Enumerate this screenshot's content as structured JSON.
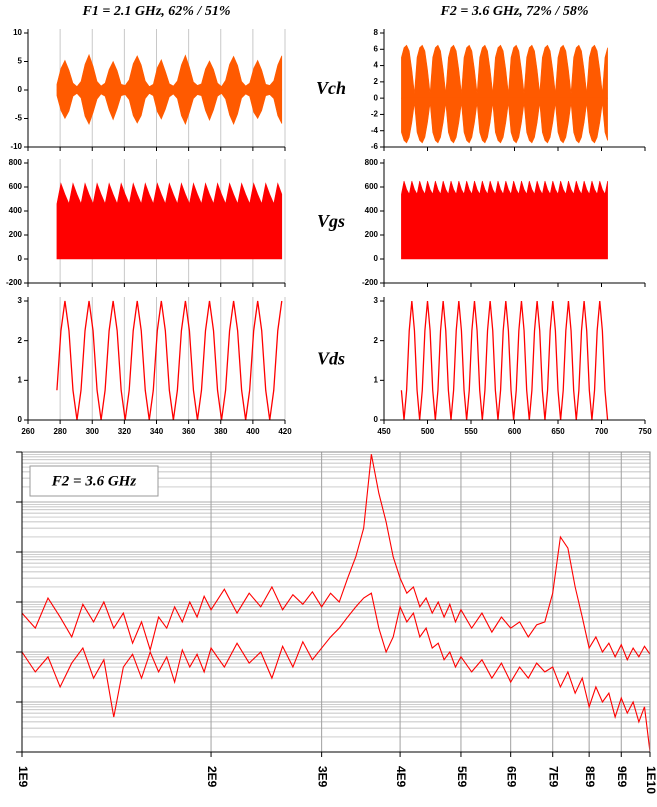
{
  "chart_data": [
    {
      "type": "waveform",
      "title": "F1 = 2.1 GHz, 62% / 51%",
      "xlim": [
        260,
        420
      ],
      "xticks": [
        260,
        280,
        300,
        320,
        340,
        360,
        380,
        400,
        420
      ],
      "grid": true,
      "x": [
        278,
        280.5,
        283,
        285.5,
        288,
        290.5,
        293,
        295.5,
        298,
        300.5,
        303,
        305.5,
        308,
        310.5,
        313,
        315.5,
        318,
        320.5,
        323,
        325.5,
        328,
        330.5,
        333,
        335.5,
        338,
        340.5,
        343,
        345.5,
        348,
        350.5,
        353,
        355.5,
        358,
        360.5,
        363,
        365.5,
        368,
        370.5,
        373,
        375.5,
        378,
        380.5,
        383,
        385.5,
        388,
        390.5,
        393,
        395.5,
        398,
        400.5,
        403,
        405.5,
        408,
        410.5,
        413,
        415.5,
        418
      ],
      "panels": [
        {
          "kind": "band",
          "color": "#ff5a00",
          "ylim": [
            -10,
            10
          ],
          "yticks": [
            -10,
            -5,
            0,
            5,
            10
          ],
          "values": [
            1.0,
            3.8,
            5.2,
            3.5,
            1.2,
            0.6,
            1.5,
            4.5,
            6.2,
            4.2,
            1.5,
            0.7,
            1.2,
            3.6,
            5.0,
            3.4,
            1.0,
            0.8,
            1.8,
            4.6,
            6.0,
            4.4,
            1.6,
            0.6,
            1.0,
            3.9,
            5.3,
            3.3,
            1.1,
            0.7,
            1.6,
            4.4,
            6.1,
            4.0,
            1.4,
            0.8,
            1.1,
            3.7,
            5.1,
            3.6,
            1.2,
            0.6,
            1.7,
            4.5,
            5.9,
            4.3,
            1.5,
            0.7,
            1.2,
            3.8,
            5.2,
            3.5,
            1.0,
            0.8,
            1.6,
            4.4,
            6.0
          ],
          "lower": [
            -1.0,
            -3.6,
            -5.0,
            -3.7,
            -1.1,
            -0.6,
            -1.4,
            -4.6,
            -6.0,
            -4.0,
            -1.6,
            -0.7,
            -1.1,
            -3.5,
            -5.2,
            -3.3,
            -1.0,
            -0.8,
            -1.7,
            -4.5,
            -5.8,
            -4.5,
            -1.5,
            -0.6,
            -1.0,
            -3.8,
            -5.1,
            -3.4,
            -1.2,
            -0.7,
            -1.5,
            -4.5,
            -6.0,
            -3.9,
            -1.5,
            -0.8,
            -1.0,
            -3.6,
            -5.3,
            -3.5,
            -1.1,
            -0.6,
            -1.6,
            -4.4,
            -6.0,
            -4.2,
            -1.4,
            -0.7,
            -1.1,
            -3.9,
            -5.0,
            -3.6,
            -1.0,
            -0.8,
            -1.5,
            -4.5,
            -5.9
          ]
        },
        {
          "kind": "area",
          "color": "#ff0000",
          "ylim": [
            -200,
            800
          ],
          "yticks": [
            -200,
            0,
            200,
            400,
            600,
            800
          ],
          "values": [
            460,
            630,
            540,
            460,
            630,
            540,
            460,
            630,
            540,
            460,
            630,
            540,
            460,
            630,
            540,
            460,
            630,
            540,
            460,
            630,
            540,
            460,
            630,
            540,
            460,
            630,
            540,
            460,
            630,
            540,
            460,
            630,
            540,
            460,
            630,
            540,
            460,
            630,
            540,
            460,
            630,
            540,
            460,
            630,
            540,
            460,
            630,
            540,
            460,
            630,
            540,
            460,
            630,
            540,
            460,
            630,
            540
          ]
        },
        {
          "kind": "line",
          "color": "#ff0000",
          "ylim": [
            0,
            3
          ],
          "yticks": [
            0,
            1,
            2,
            3
          ],
          "values": [
            0.75,
            2.25,
            3,
            2.25,
            0.75,
            0,
            0.75,
            2.25,
            3,
            2.25,
            0.75,
            0,
            0.75,
            2.25,
            3,
            2.25,
            0.75,
            0,
            0.75,
            2.25,
            3,
            2.25,
            0.75,
            0,
            0.75,
            2.25,
            3,
            2.25,
            0.75,
            0,
            0.75,
            2.25,
            3,
            2.25,
            0.75,
            0,
            0.75,
            2.25,
            3,
            2.25,
            0.75,
            0,
            0.75,
            2.25,
            3,
            2.25,
            0.75,
            0,
            0.75,
            2.25,
            3,
            2.25,
            0.75,
            0,
            0.75,
            2.25,
            3
          ]
        }
      ]
    },
    {
      "type": "waveform",
      "title": "F2 = 3.6 GHz, 72% / 58%",
      "xlim": [
        450,
        750
      ],
      "xticks": [
        450,
        500,
        550,
        600,
        650,
        700,
        750
      ],
      "grid": false,
      "x": [
        470,
        473,
        476,
        479,
        482,
        485,
        488,
        491,
        494,
        497,
        500,
        503,
        506,
        509,
        512,
        515,
        518,
        521,
        524,
        527,
        530,
        533,
        536,
        539,
        542,
        545,
        548,
        551,
        554,
        557,
        560,
        563,
        566,
        569,
        572,
        575,
        578,
        581,
        584,
        587,
        590,
        593,
        596,
        599,
        602,
        605,
        608,
        611,
        614,
        617,
        620,
        623,
        626,
        629,
        632,
        635,
        638,
        641,
        644,
        647,
        650,
        653,
        656,
        659,
        662,
        665,
        668,
        671,
        674,
        677,
        680,
        683,
        686,
        689,
        692,
        695,
        698,
        701,
        704,
        707
      ],
      "panels": [
        {
          "label": "Vch",
          "kind": "band",
          "color": "#ff5a00",
          "ylim": [
            -6,
            8
          ],
          "yticks": [
            -6,
            -4,
            -2,
            0,
            2,
            4,
            6,
            8
          ],
          "values": [
            5.0,
            6.2,
            6.5,
            5.8,
            3.5,
            0.6,
            5.0,
            6.2,
            6.5,
            5.8,
            3.5,
            0.6,
            5.0,
            6.2,
            6.5,
            5.8,
            3.5,
            0.6,
            5.0,
            6.2,
            6.5,
            5.8,
            3.5,
            0.6,
            5.0,
            6.2,
            6.5,
            5.8,
            3.5,
            0.6,
            5.0,
            6.2,
            6.5,
            5.8,
            3.5,
            0.6,
            5.0,
            6.2,
            6.5,
            5.8,
            3.5,
            0.6,
            5.0,
            6.2,
            6.5,
            5.8,
            3.5,
            0.6,
            5.0,
            6.2,
            6.5,
            5.8,
            3.5,
            0.6,
            5.0,
            6.2,
            6.5,
            5.8,
            3.5,
            0.6,
            5.0,
            6.2,
            6.5,
            5.8,
            3.5,
            0.6,
            5.0,
            6.2,
            6.5,
            5.8,
            3.5,
            0.6,
            5.0,
            6.2,
            6.5,
            5.8,
            3.5,
            0.6,
            5.0,
            6.2
          ],
          "lower": [
            -4.2,
            -5.2,
            -5.5,
            -4.8,
            -3.0,
            -0.6,
            -4.2,
            -5.2,
            -5.5,
            -4.8,
            -3.0,
            -0.6,
            -4.2,
            -5.2,
            -5.5,
            -4.8,
            -3.0,
            -0.6,
            -4.2,
            -5.2,
            -5.5,
            -4.8,
            -3.0,
            -0.6,
            -4.2,
            -5.2,
            -5.5,
            -4.8,
            -3.0,
            -0.6,
            -4.2,
            -5.2,
            -5.5,
            -4.8,
            -3.0,
            -0.6,
            -4.2,
            -5.2,
            -5.5,
            -4.8,
            -3.0,
            -0.6,
            -4.2,
            -5.2,
            -5.5,
            -4.8,
            -3.0,
            -0.6,
            -4.2,
            -5.2,
            -5.5,
            -4.8,
            -3.0,
            -0.6,
            -4.2,
            -5.2,
            -5.5,
            -4.8,
            -3.0,
            -0.6,
            -4.2,
            -5.2,
            -5.5,
            -4.8,
            -3.0,
            -0.6,
            -4.2,
            -5.2,
            -5.5,
            -4.8,
            -3.0,
            -0.6,
            -4.2,
            -5.2,
            -5.5,
            -4.8,
            -3.0,
            -0.6,
            -4.2,
            -5.2
          ]
        },
        {
          "label": "Vgs",
          "kind": "area",
          "color": "#ff0000",
          "ylim": [
            -200,
            800
          ],
          "yticks": [
            -200,
            0,
            200,
            400,
            600,
            800
          ],
          "values": [
            540,
            650,
            580,
            540,
            650,
            580,
            540,
            650,
            580,
            540,
            650,
            580,
            540,
            650,
            580,
            540,
            650,
            580,
            540,
            650,
            580,
            540,
            650,
            580,
            540,
            650,
            580,
            540,
            650,
            580,
            540,
            650,
            580,
            540,
            650,
            580,
            540,
            650,
            580,
            540,
            650,
            580,
            540,
            650,
            580,
            540,
            650,
            580,
            540,
            650,
            580,
            540,
            650,
            580,
            540,
            650,
            580,
            540,
            650,
            580,
            540,
            650,
            580,
            540,
            650,
            580,
            540,
            650,
            580,
            540,
            650,
            580,
            540,
            650,
            580,
            540,
            650,
            580,
            540,
            650
          ]
        },
        {
          "label": "Vds",
          "kind": "line",
          "color": "#ff0000",
          "ylim": [
            0,
            3
          ],
          "yticks": [
            0,
            1,
            2,
            3
          ],
          "values": [
            0.75,
            0,
            0.75,
            2.25,
            3,
            2.25,
            0.75,
            0,
            0.75,
            2.25,
            3,
            2.25,
            0.75,
            0,
            0.75,
            2.25,
            3,
            2.25,
            0.75,
            0,
            0.75,
            2.25,
            3,
            2.25,
            0.75,
            0,
            0.75,
            2.25,
            3,
            2.25,
            0.75,
            0,
            0.75,
            2.25,
            3,
            2.25,
            0.75,
            0,
            0.75,
            2.25,
            3,
            2.25,
            0.75,
            0,
            0.75,
            2.25,
            3,
            2.25,
            0.75,
            0,
            0.75,
            2.25,
            3,
            2.25,
            0.75,
            0,
            0.75,
            2.25,
            3,
            2.25,
            0.75,
            0,
            0.75,
            2.25,
            3,
            2.25,
            0.75,
            0,
            0.75,
            2.25,
            3,
            2.25,
            0.75,
            0,
            0.75,
            2.25,
            3,
            2.25,
            0.75,
            0
          ]
        }
      ]
    },
    {
      "type": "line",
      "annotation": "F2 = 3.6 GHz",
      "xscale": "log",
      "yscale": "log",
      "grid": true,
      "xlim": [
        1000000000.0,
        10000000000.0
      ],
      "xticks": [
        {
          "value": 1000000000.0,
          "label": "1E9"
        },
        {
          "value": 2000000000.0,
          "label": "2E9"
        },
        {
          "value": 3000000000.0,
          "label": "3E9"
        },
        {
          "value": 4000000000.0,
          "label": "4E9"
        },
        {
          "value": 5000000000.0,
          "label": "5E9"
        },
        {
          "value": 6000000000.0,
          "label": "6E9"
        },
        {
          "value": 7000000000.0,
          "label": "7E9"
        },
        {
          "value": 8000000000.0,
          "label": "8E9"
        },
        {
          "value": 9000000000.0,
          "label": "9E9"
        },
        {
          "value": 10000000000.0,
          "label": "1E10"
        }
      ],
      "ylim": [
        1e-06,
        1
      ],
      "yticks": [
        1e-06,
        1e-05,
        0.0001,
        0.001,
        0.01,
        0.1,
        1
      ],
      "x": [
        1000000000.0,
        1050000000.0,
        1100000000.0,
        1150000000.0,
        1200000000.0,
        1250000000.0,
        1300000000.0,
        1350000000.0,
        1400000000.0,
        1450000000.0,
        1500000000.0,
        1550000000.0,
        1600000000.0,
        1650000000.0,
        1700000000.0,
        1750000000.0,
        1800000000.0,
        1850000000.0,
        1900000000.0,
        1950000000.0,
        2000000000.0,
        2100000000.0,
        2200000000.0,
        2300000000.0,
        2400000000.0,
        2500000000.0,
        2600000000.0,
        2700000000.0,
        2800000000.0,
        2900000000.0,
        3000000000.0,
        3100000000.0,
        3200000000.0,
        3300000000.0,
        3400000000.0,
        3500000000.0,
        3600000000.0,
        3700000000.0,
        3800000000.0,
        3900000000.0,
        4000000000.0,
        4100000000.0,
        4200000000.0,
        4300000000.0,
        4400000000.0,
        4500000000.0,
        4600000000.0,
        4700000000.0,
        4800000000.0,
        4900000000.0,
        5000000000.0,
        5200000000.0,
        5400000000.0,
        5600000000.0,
        5800000000.0,
        6000000000.0,
        6200000000.0,
        6400000000.0,
        6600000000.0,
        6800000000.0,
        7000000000.0,
        7200000000.0,
        7400000000.0,
        7600000000.0,
        7800000000.0,
        8000000000.0,
        8200000000.0,
        8400000000.0,
        8600000000.0,
        8800000000.0,
        9000000000.0,
        9200000000.0,
        9400000000.0,
        9600000000.0,
        9800000000.0,
        10000000000.0
      ],
      "series": [
        {
          "color": "#ff0000",
          "values": [
            0.0006,
            0.0003,
            0.0012,
            0.0005,
            0.0002,
            0.0009,
            0.0004,
            0.001,
            0.0003,
            0.0006,
            0.00015,
            0.0004,
            0.00011,
            0.0005,
            0.0003,
            0.0008,
            0.0004,
            0.001,
            0.0005,
            0.0013,
            0.0007,
            0.0018,
            0.0006,
            0.0015,
            0.0008,
            0.002,
            0.0007,
            0.0014,
            0.0009,
            0.0016,
            0.0008,
            0.0015,
            0.001,
            0.003,
            0.008,
            0.03,
            0.9,
            0.15,
            0.04,
            0.008,
            0.003,
            0.0015,
            0.002,
            0.0008,
            0.0012,
            0.0006,
            0.001,
            0.0005,
            0.0009,
            0.0004,
            0.0007,
            0.0003,
            0.0006,
            0.00025,
            0.0005,
            0.0003,
            0.0004,
            0.0002,
            0.00035,
            0.0004,
            0.0015,
            0.02,
            0.012,
            0.002,
            0.0005,
            0.00012,
            0.0002,
            0.0001,
            0.00015,
            8e-05,
            0.00014,
            7e-05,
            0.00012,
            8e-05,
            0.00013,
            9e-05
          ]
        },
        {
          "color": "#ff0000",
          "values": [
            0.0001,
            4e-05,
            8e-05,
            2e-05,
            6e-05,
            0.00012,
            3e-05,
            7e-05,
            5e-06,
            5e-05,
            9e-05,
            3e-05,
            0.0001,
            4e-05,
            8e-05,
            2.5e-05,
            0.00011,
            5e-05,
            9e-05,
            4e-05,
            0.00012,
            5e-05,
            0.00015,
            6e-05,
            0.0001,
            3e-05,
            0.00013,
            5e-05,
            0.00016,
            7e-05,
            0.00012,
            0.0002,
            0.0003,
            0.0005,
            0.0008,
            0.0012,
            0.0015,
            0.0003,
            0.0001,
            0.0002,
            0.0008,
            0.0004,
            0.0006,
            0.0002,
            0.0003,
            0.00012,
            0.00015,
            7e-05,
            0.0001,
            5e-05,
            8e-05,
            4e-05,
            7e-05,
            3e-05,
            6e-05,
            2.5e-05,
            5e-05,
            3e-05,
            6e-05,
            4e-05,
            5e-05,
            2e-05,
            4e-05,
            1.5e-05,
            3e-05,
            8e-06,
            2e-05,
            1e-05,
            1.5e-05,
            5e-06,
            1.2e-05,
            6e-06,
            1e-05,
            4e-06,
            8e-06,
            1e-06
          ]
        }
      ]
    }
  ]
}
